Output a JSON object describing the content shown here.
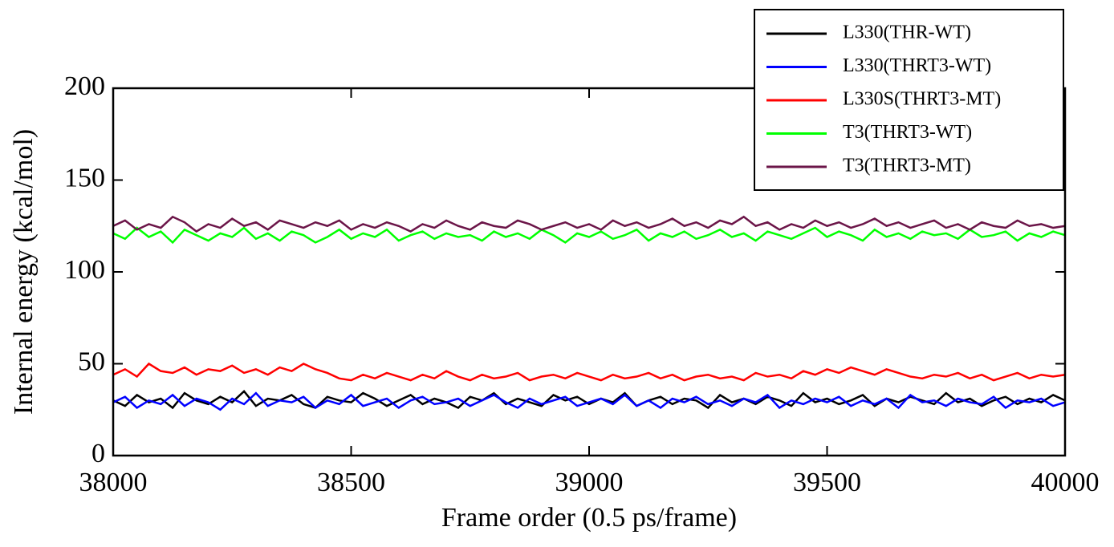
{
  "chart_data": {
    "type": "line",
    "x_label": "Frame order (0.5 ps/frame)",
    "y_label": "Internal energy (kcal/mol)",
    "x": [
      38000,
      38025,
      38050,
      38075,
      38100,
      38125,
      38150,
      38175,
      38200,
      38225,
      38250,
      38275,
      38300,
      38325,
      38350,
      38375,
      38400,
      38425,
      38450,
      38475,
      38500,
      38525,
      38550,
      38575,
      38600,
      38625,
      38650,
      38675,
      38700,
      38725,
      38750,
      38775,
      38800,
      38825,
      38850,
      38875,
      38900,
      38925,
      38950,
      38975,
      39000,
      39025,
      39050,
      39075,
      39100,
      39125,
      39150,
      39175,
      39200,
      39225,
      39250,
      39275,
      39300,
      39325,
      39350,
      39375,
      39400,
      39425,
      39450,
      39475,
      39500,
      39525,
      39550,
      39575,
      39600,
      39625,
      39650,
      39675,
      39700,
      39725,
      39750,
      39775,
      39800,
      39825,
      39850,
      39875,
      39900,
      39925,
      39950,
      39975,
      40000
    ],
    "series": [
      {
        "name": "L330(THR-WT)",
        "color": "#000000",
        "values": [
          30,
          27,
          33,
          29,
          31,
          26,
          34,
          30,
          28,
          32,
          29,
          35,
          27,
          31,
          30,
          33,
          28,
          26,
          32,
          30,
          29,
          34,
          31,
          27,
          30,
          33,
          28,
          31,
          29,
          26,
          32,
          30,
          34,
          28,
          31,
          29,
          27,
          33,
          30,
          32,
          28,
          31,
          29,
          34,
          27,
          30,
          32,
          28,
          31,
          30,
          26,
          33,
          29,
          31,
          28,
          32,
          30,
          27,
          34,
          29,
          31,
          28,
          30,
          33,
          27,
          31,
          29,
          32,
          30,
          28,
          34,
          29,
          31,
          27,
          30,
          32,
          28,
          31,
          29,
          33,
          30
        ]
      },
      {
        "name": "L330(THRT3-WT)",
        "color": "#0000ff",
        "values": [
          29,
          32,
          26,
          30,
          28,
          33,
          27,
          31,
          29,
          25,
          31,
          28,
          34,
          27,
          30,
          29,
          32,
          26,
          30,
          28,
          33,
          27,
          29,
          31,
          26,
          30,
          32,
          28,
          29,
          31,
          27,
          30,
          33,
          29,
          26,
          31,
          28,
          30,
          32,
          27,
          29,
          31,
          28,
          33,
          27,
          30,
          26,
          31,
          29,
          32,
          28,
          30,
          27,
          31,
          29,
          33,
          26,
          30,
          28,
          31,
          29,
          32,
          27,
          30,
          28,
          31,
          26,
          33,
          29,
          30,
          27,
          31,
          29,
          28,
          32,
          26,
          30,
          29,
          31,
          27,
          29
        ]
      },
      {
        "name": "L330S(THRT3-MT)",
        "color": "#ff0000",
        "values": [
          44,
          47,
          43,
          50,
          46,
          45,
          48,
          44,
          47,
          46,
          49,
          45,
          47,
          44,
          48,
          46,
          50,
          47,
          45,
          42,
          41,
          44,
          42,
          45,
          43,
          41,
          44,
          42,
          46,
          43,
          41,
          44,
          42,
          43,
          45,
          41,
          43,
          44,
          42,
          45,
          43,
          41,
          44,
          42,
          43,
          45,
          42,
          44,
          41,
          43,
          44,
          42,
          43,
          41,
          45,
          43,
          44,
          42,
          46,
          44,
          47,
          45,
          48,
          46,
          44,
          47,
          45,
          43,
          42,
          44,
          43,
          45,
          42,
          44,
          41,
          43,
          45,
          42,
          44,
          43,
          44
        ]
      },
      {
        "name": "T3(THRT3-WT)",
        "color": "#00ff00",
        "values": [
          121,
          118,
          124,
          119,
          122,
          116,
          123,
          120,
          117,
          121,
          119,
          124,
          118,
          121,
          117,
          122,
          120,
          116,
          119,
          123,
          118,
          121,
          119,
          123,
          117,
          120,
          122,
          118,
          121,
          119,
          120,
          117,
          122,
          119,
          121,
          118,
          123,
          120,
          116,
          121,
          119,
          122,
          118,
          120,
          123,
          117,
          121,
          119,
          122,
          118,
          120,
          123,
          119,
          121,
          117,
          122,
          120,
          118,
          121,
          124,
          119,
          122,
          120,
          117,
          123,
          119,
          121,
          118,
          122,
          120,
          121,
          118,
          123,
          119,
          120,
          122,
          117,
          121,
          119,
          122,
          120
        ]
      },
      {
        "name": "T3(THRT3-MT)",
        "color": "#6b1548",
        "values": [
          125,
          128,
          123,
          126,
          124,
          130,
          127,
          122,
          126,
          124,
          129,
          125,
          127,
          123,
          128,
          126,
          124,
          127,
          125,
          128,
          123,
          126,
          124,
          127,
          125,
          122,
          126,
          124,
          128,
          125,
          123,
          127,
          125,
          124,
          128,
          126,
          123,
          125,
          127,
          124,
          126,
          123,
          128,
          125,
          127,
          124,
          126,
          129,
          125,
          127,
          124,
          128,
          126,
          130,
          125,
          127,
          123,
          126,
          124,
          128,
          125,
          127,
          124,
          126,
          129,
          125,
          127,
          124,
          126,
          128,
          124,
          126,
          123,
          127,
          125,
          124,
          128,
          125,
          126,
          124,
          125
        ]
      }
    ],
    "xlim": [
      38000,
      40000
    ],
    "xticks": [
      38000,
      38500,
      39000,
      39500,
      40000
    ],
    "ylim": [
      0,
      200
    ],
    "yticks": [
      0,
      50,
      100,
      150,
      200
    ],
    "legend": "upper right"
  }
}
